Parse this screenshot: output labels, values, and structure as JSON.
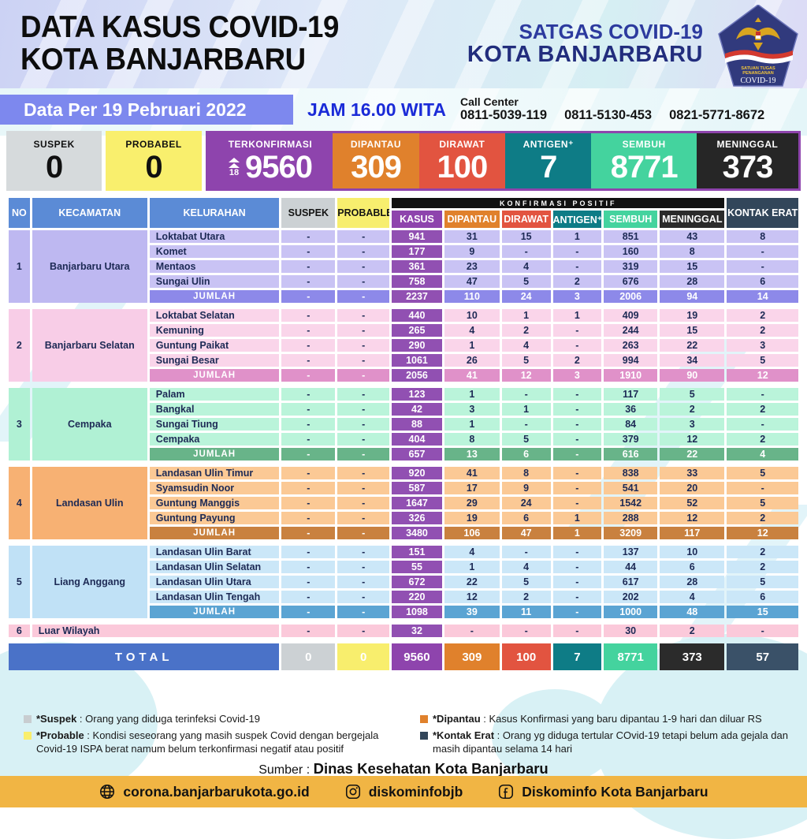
{
  "header": {
    "title_line1": "DATA KASUS COVID-19",
    "title_line2": "KOTA BANJARBARU",
    "satgas_line1": "SATGAS COVID-19",
    "satgas_line2": "KOTA BANJARBARU",
    "logo": {
      "line1": "SATUAN TUGAS",
      "line2": "PENANGANAN",
      "line3": "COVID-19"
    }
  },
  "info_bar": {
    "date_label": "Data Per 19 Pebruari 2022",
    "time_label": "JAM 16.00 WITA",
    "call_center_label": "Call Center",
    "phones": [
      "0811-5039-119",
      "0811-5130-453",
      "0821-5771-8672"
    ]
  },
  "stats": {
    "boxes": [
      {
        "key": "suspek",
        "label": "SUSPEK",
        "value": "0",
        "bg": "#d6dadc",
        "fg": "#101010",
        "group": false
      },
      {
        "key": "probabel",
        "label": "PROBABEL",
        "value": "0",
        "bg": "#f9ef6d",
        "fg": "#101010",
        "group": false
      },
      {
        "key": "terkonfirmasi",
        "label": "TERKONFIRMASI",
        "value": "9560",
        "delta": "18",
        "bg": "#8e44ad",
        "fg": "#ffffff",
        "group": true
      },
      {
        "key": "dipantau",
        "label": "DIPANTAU",
        "value": "309",
        "bg": "#e0812c",
        "fg": "#ffffff",
        "group": true
      },
      {
        "key": "dirawat",
        "label": "DIRAWAT",
        "value": "100",
        "bg": "#e25440",
        "fg": "#ffffff",
        "group": true
      },
      {
        "key": "antigen",
        "label": "ANTIGEN⁺",
        "value": "7",
        "bg": "#0e7c86",
        "fg": "#ffffff",
        "group": true
      },
      {
        "key": "sembuh",
        "label": "SEMBUH",
        "value": "8771",
        "bg": "#44d39e",
        "fg": "#ffffff",
        "group": true
      },
      {
        "key": "meninggal",
        "label": "MENINGGAL",
        "value": "373",
        "bg": "#262626",
        "fg": "#ffffff",
        "group": true
      }
    ]
  },
  "table": {
    "header": {
      "no": "NO",
      "kecamatan": "KECAMATAN",
      "kelurahan": "KELURAHAN",
      "suspek": "SUSPEK",
      "probable": "PROBABLE",
      "konfirmasi": "KONFIRMASI POSITIF",
      "sub": [
        "KASUS",
        "DIPANTAU",
        "DIRAWAT",
        "ANTIGEN⁺",
        "SEMBUH",
        "MENINGGAL"
      ],
      "sub_colors": [
        "#8e44ad",
        "#e0812c",
        "#e25440",
        "#0e7c86",
        "#44d39e",
        "#2b2b2b"
      ],
      "kontak": "KONTAK ERAT",
      "colors": {
        "main": "#5b8bd6",
        "suspek": "#ccd1d4",
        "probable": "#f7ee6e",
        "band": "#111111",
        "kontak": "#32465a",
        "suspek_fg": "#141414",
        "probable_fg": "#141414"
      }
    },
    "kasus_bg": "#9150b2",
    "jumlah_label": "JUMLAH",
    "sections": [
      {
        "no": "1",
        "kecamatan": "Banjarbaru Utara",
        "colors": {
          "row": "#c9c3f4",
          "head": "#beb8f1",
          "jumlah": "#8d89e9"
        },
        "rows": [
          {
            "name": "Loktabat Utara",
            "values": [
              "-",
              "-",
              "941",
              "31",
              "15",
              "1",
              "851",
              "43",
              "8"
            ]
          },
          {
            "name": "Komet",
            "values": [
              "-",
              "-",
              "177",
              "9",
              "-",
              "-",
              "160",
              "8",
              "-"
            ]
          },
          {
            "name": "Mentaos",
            "values": [
              "-",
              "-",
              "361",
              "23",
              "4",
              "-",
              "319",
              "15",
              "-"
            ]
          },
          {
            "name": "Sungai Ulin",
            "values": [
              "-",
              "-",
              "758",
              "47",
              "5",
              "2",
              "676",
              "28",
              "6"
            ]
          }
        ],
        "jumlah": [
          "-",
          "-",
          "2237",
          "110",
          "24",
          "3",
          "2006",
          "94",
          "14"
        ]
      },
      {
        "no": "2",
        "kecamatan": "Banjarbaru Selatan",
        "colors": {
          "row": "#fad5ea",
          "head": "#f8cde7",
          "jumlah": "#e091c9"
        },
        "rows": [
          {
            "name": "Loktabat Selatan",
            "values": [
              "-",
              "-",
              "440",
              "10",
              "1",
              "1",
              "409",
              "19",
              "2"
            ]
          },
          {
            "name": "Kemuning",
            "values": [
              "-",
              "-",
              "265",
              "4",
              "2",
              "-",
              "244",
              "15",
              "2"
            ]
          },
          {
            "name": "Guntung Paikat",
            "values": [
              "-",
              "-",
              "290",
              "1",
              "4",
              "-",
              "263",
              "22",
              "3"
            ]
          },
          {
            "name": "Sungai Besar",
            "values": [
              "-",
              "-",
              "1061",
              "26",
              "5",
              "2",
              "994",
              "34",
              "5"
            ]
          }
        ],
        "jumlah": [
          "-",
          "-",
          "2056",
          "41",
          "12",
          "3",
          "1910",
          "90",
          "12"
        ]
      },
      {
        "no": "3",
        "kecamatan": "Cempaka",
        "colors": {
          "row": "#baf4da",
          "head": "#b0f1d4",
          "jumlah": "#68b489"
        },
        "rows": [
          {
            "name": "Palam",
            "values": [
              "-",
              "-",
              "123",
              "1",
              "-",
              "-",
              "117",
              "5",
              "-"
            ]
          },
          {
            "name": "Bangkal",
            "values": [
              "-",
              "-",
              "42",
              "3",
              "1",
              "-",
              "36",
              "2",
              "2"
            ]
          },
          {
            "name": "Sungai Tiung",
            "values": [
              "-",
              "-",
              "88",
              "1",
              "-",
              "-",
              "84",
              "3",
              "-"
            ]
          },
          {
            "name": "Cempaka",
            "values": [
              "-",
              "-",
              "404",
              "8",
              "5",
              "-",
              "379",
              "12",
              "2"
            ]
          }
        ],
        "jumlah": [
          "-",
          "-",
          "657",
          "13",
          "6",
          "-",
          "616",
          "22",
          "4"
        ]
      },
      {
        "no": "4",
        "kecamatan": "Landasan Ulin",
        "colors": {
          "row": "#fbc995",
          "head": "#f7b173",
          "jumlah": "#c9813f"
        },
        "rows": [
          {
            "name": "Landasan Ulin Timur",
            "values": [
              "-",
              "-",
              "920",
              "41",
              "8",
              "-",
              "838",
              "33",
              "5"
            ]
          },
          {
            "name": "Syamsudin Noor",
            "values": [
              "-",
              "-",
              "587",
              "17",
              "9",
              "-",
              "541",
              "20",
              "-"
            ]
          },
          {
            "name": "Guntung Manggis",
            "values": [
              "-",
              "-",
              "1647",
              "29",
              "24",
              "-",
              "1542",
              "52",
              "5"
            ]
          },
          {
            "name": "Guntung Payung",
            "values": [
              "-",
              "-",
              "326",
              "19",
              "6",
              "1",
              "288",
              "12",
              "2"
            ]
          }
        ],
        "jumlah": [
          "-",
          "-",
          "3480",
          "106",
          "47",
          "1",
          "3209",
          "117",
          "12"
        ]
      },
      {
        "no": "5",
        "kecamatan": "Liang Anggang",
        "colors": {
          "row": "#cbe7f8",
          "head": "#c0e1f6",
          "jumlah": "#5ba4d3"
        },
        "rows": [
          {
            "name": "Landasan Ulin Barat",
            "values": [
              "-",
              "-",
              "151",
              "4",
              "-",
              "-",
              "137",
              "10",
              "2"
            ]
          },
          {
            "name": "Landasan Ulin Selatan",
            "values": [
              "-",
              "-",
              "55",
              "1",
              "4",
              "-",
              "44",
              "6",
              "2"
            ]
          },
          {
            "name": "Landasan Ulin Utara",
            "values": [
              "-",
              "-",
              "672",
              "22",
              "5",
              "-",
              "617",
              "28",
              "5"
            ]
          },
          {
            "name": "Landasan Ulin Tengah",
            "values": [
              "-",
              "-",
              "220",
              "12",
              "2",
              "-",
              "202",
              "4",
              "6"
            ]
          }
        ],
        "jumlah": [
          "-",
          "-",
          "1098",
          "39",
          "11",
          "-",
          "1000",
          "48",
          "15"
        ]
      },
      {
        "no": "6",
        "kecamatan": "Luar Wilayah",
        "single": true,
        "colors": {
          "row": "#fbc9da",
          "head": "#fbc9da",
          "jumlah": "#fbc9da"
        },
        "values": [
          "-",
          "-",
          "32",
          "-",
          "-",
          "-",
          "30",
          "2",
          "-"
        ]
      }
    ],
    "total": {
      "label": "TOTAL",
      "label_bg": "#4a72c8",
      "values": [
        "0",
        "0",
        "9560",
        "309",
        "100",
        "7",
        "8771",
        "373",
        "57"
      ],
      "colors": [
        "#ccd1d4",
        "#f8ee6d",
        "#8e44ad",
        "#e0812c",
        "#e25440",
        "#0e7c86",
        "#44d39e",
        "#2b2b2b",
        "#3a5168"
      ],
      "dark_text_cols": [
        0,
        1
      ]
    }
  },
  "legend": {
    "left": [
      {
        "color": "#c8cdd0",
        "name": "*Suspek",
        "desc": ": Orang yang diduga terinfeksi Covid-19"
      },
      {
        "color": "#f9ee6c",
        "name": "*Probable",
        "desc": ": Kondisi seseorang yang masih suspek Covid dengan bergejala Covid-19 ISPA berat namum belum terkonfirmasi negatif atau positif"
      }
    ],
    "right": [
      {
        "color": "#e0812c",
        "name": "*Dipantau",
        "desc": ": Kasus Konfirmasi yang baru dipantau 1-9 hari dan diluar RS"
      },
      {
        "color": "#32465a",
        "name": "*Kontak Erat",
        "desc": ": Orang yg diduga tertular COvid-19 tetapi belum ada gejala dan masih dipantau selama 14 hari"
      }
    ]
  },
  "source": {
    "prefix": "Sumber : ",
    "name": "Dinas Kesehatan Kota Banjarbaru"
  },
  "footer": {
    "website": "corona.banjarbarukota.go.id",
    "instagram": "diskominfobjb",
    "facebook": "Diskominfo Kota Banjarbaru"
  }
}
